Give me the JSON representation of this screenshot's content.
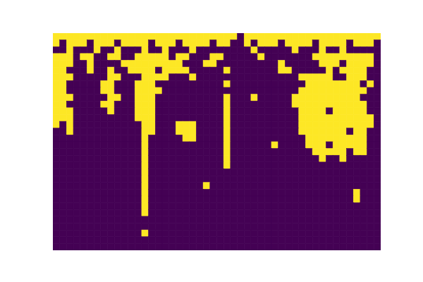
{
  "chart_data": {
    "type": "heatmap",
    "tick_labels": false,
    "cells": [
      [
        1,
        1,
        1,
        1,
        1,
        1,
        1,
        1,
        1,
        1,
        1,
        1,
        1,
        1,
        1,
        1,
        1,
        1,
        1,
        1,
        1,
        1,
        1,
        1,
        1,
        1,
        1,
        0,
        1,
        1,
        1,
        1,
        1,
        1,
        1,
        1,
        1,
        1,
        1,
        1,
        1,
        1,
        1,
        1,
        1,
        1,
        1,
        1
      ],
      [
        1,
        0,
        1,
        1,
        1,
        0,
        1,
        1,
        1,
        0,
        1,
        1,
        1,
        1,
        0,
        1,
        1,
        1,
        0,
        1,
        1,
        1,
        1,
        0,
        1,
        1,
        0,
        0,
        1,
        0,
        1,
        1,
        1,
        0,
        1,
        1,
        1,
        1,
        0,
        1,
        1,
        1,
        1,
        0,
        1,
        1,
        1,
        0
      ],
      [
        0,
        0,
        1,
        0,
        0,
        0,
        1,
        0,
        0,
        1,
        0,
        0,
        0,
        1,
        0,
        0,
        1,
        0,
        0,
        0,
        1,
        0,
        0,
        0,
        0,
        0,
        0,
        0,
        0,
        1,
        0,
        0,
        0,
        0,
        0,
        1,
        0,
        0,
        0,
        1,
        0,
        0,
        1,
        0,
        0,
        0,
        0,
        0
      ],
      [
        1,
        1,
        1,
        0,
        1,
        1,
        0,
        0,
        1,
        1,
        0,
        0,
        1,
        1,
        1,
        1,
        1,
        0,
        1,
        1,
        0,
        0,
        0,
        1,
        1,
        0,
        0,
        0,
        0,
        0,
        1,
        0,
        0,
        0,
        0,
        0,
        0,
        0,
        1,
        1,
        1,
        1,
        1,
        1,
        1,
        1,
        1,
        0
      ],
      [
        1,
        1,
        1,
        0,
        0,
        1,
        0,
        0,
        0,
        0,
        1,
        1,
        1,
        1,
        1,
        1,
        1,
        1,
        1,
        0,
        0,
        0,
        1,
        1,
        0,
        0,
        0,
        0,
        0,
        0,
        0,
        0,
        0,
        1,
        0,
        0,
        0,
        0,
        0,
        1,
        1,
        1,
        0,
        1,
        1,
        1,
        1,
        0
      ],
      [
        1,
        1,
        0,
        0,
        0,
        1,
        0,
        0,
        1,
        0,
        0,
        1,
        1,
        1,
        1,
        0,
        1,
        1,
        1,
        1,
        0,
        0,
        0,
        0,
        0,
        1,
        0,
        0,
        0,
        0,
        0,
        0,
        0,
        1,
        1,
        0,
        0,
        0,
        0,
        0,
        1,
        0,
        1,
        1,
        1,
        1,
        0,
        0
      ],
      [
        1,
        1,
        1,
        0,
        0,
        0,
        0,
        0,
        1,
        1,
        0,
        0,
        0,
        1,
        1,
        1,
        1,
        0,
        0,
        0,
        1,
        0,
        0,
        0,
        0,
        0,
        0,
        0,
        0,
        0,
        0,
        0,
        0,
        0,
        0,
        0,
        1,
        1,
        1,
        1,
        1,
        0,
        0,
        1,
        1,
        1,
        0,
        0
      ],
      [
        1,
        1,
        0,
        0,
        0,
        0,
        0,
        1,
        1,
        0,
        0,
        0,
        1,
        1,
        1,
        0,
        0,
        0,
        0,
        0,
        0,
        0,
        0,
        0,
        0,
        1,
        0,
        0,
        0,
        0,
        0,
        0,
        0,
        0,
        0,
        0,
        0,
        1,
        1,
        1,
        1,
        1,
        1,
        1,
        1,
        0,
        1,
        0
      ],
      [
        1,
        1,
        0,
        0,
        0,
        0,
        0,
        1,
        1,
        0,
        0,
        0,
        1,
        1,
        1,
        1,
        0,
        0,
        0,
        0,
        0,
        0,
        0,
        0,
        0,
        0,
        0,
        0,
        0,
        0,
        0,
        0,
        0,
        0,
        0,
        0,
        1,
        1,
        1,
        1,
        1,
        1,
        1,
        1,
        1,
        1,
        0,
        0
      ],
      [
        1,
        1,
        1,
        0,
        0,
        0,
        0,
        0,
        1,
        1,
        0,
        0,
        1,
        1,
        1,
        0,
        0,
        0,
        0,
        0,
        0,
        0,
        0,
        0,
        0,
        1,
        0,
        0,
        0,
        1,
        0,
        0,
        0,
        0,
        0,
        1,
        1,
        1,
        1,
        1,
        1,
        1,
        1,
        1,
        1,
        0,
        0,
        0
      ],
      [
        1,
        1,
        0,
        0,
        0,
        0,
        0,
        1,
        1,
        0,
        0,
        0,
        1,
        1,
        1,
        0,
        0,
        0,
        0,
        0,
        0,
        0,
        0,
        0,
        0,
        1,
        0,
        0,
        0,
        0,
        0,
        0,
        0,
        0,
        0,
        1,
        1,
        1,
        1,
        1,
        1,
        1,
        1,
        1,
        1,
        1,
        0,
        0
      ],
      [
        1,
        1,
        1,
        0,
        0,
        0,
        0,
        0,
        1,
        0,
        0,
        0,
        1,
        1,
        1,
        0,
        0,
        0,
        0,
        0,
        0,
        0,
        0,
        0,
        0,
        1,
        0,
        0,
        0,
        0,
        0,
        0,
        0,
        0,
        0,
        0,
        1,
        1,
        1,
        1,
        0,
        1,
        1,
        1,
        1,
        1,
        0,
        0
      ],
      [
        1,
        1,
        1,
        0,
        0,
        0,
        0,
        0,
        0,
        0,
        0,
        0,
        1,
        1,
        1,
        0,
        0,
        0,
        0,
        0,
        0,
        0,
        0,
        0,
        0,
        1,
        0,
        0,
        0,
        0,
        0,
        0,
        0,
        0,
        0,
        0,
        1,
        1,
        1,
        1,
        1,
        1,
        1,
        1,
        1,
        1,
        1,
        0
      ],
      [
        1,
        0,
        1,
        0,
        0,
        0,
        0,
        0,
        0,
        0,
        0,
        0,
        0,
        1,
        1,
        0,
        0,
        0,
        1,
        1,
        1,
        0,
        0,
        0,
        0,
        1,
        0,
        0,
        0,
        0,
        0,
        0,
        0,
        0,
        0,
        0,
        1,
        1,
        1,
        1,
        1,
        1,
        1,
        1,
        1,
        1,
        1,
        0
      ],
      [
        0,
        0,
        1,
        0,
        0,
        0,
        0,
        0,
        0,
        0,
        0,
        0,
        0,
        1,
        1,
        0,
        0,
        0,
        1,
        1,
        1,
        0,
        0,
        0,
        0,
        1,
        0,
        0,
        0,
        0,
        0,
        0,
        0,
        0,
        0,
        0,
        1,
        1,
        1,
        1,
        1,
        1,
        1,
        0,
        1,
        1,
        0,
        0
      ],
      [
        0,
        0,
        0,
        0,
        0,
        0,
        0,
        0,
        0,
        0,
        0,
        0,
        0,
        1,
        0,
        0,
        0,
        0,
        0,
        1,
        1,
        0,
        0,
        0,
        0,
        1,
        0,
        0,
        0,
        0,
        0,
        0,
        0,
        0,
        0,
        0,
        0,
        1,
        1,
        1,
        1,
        1,
        1,
        1,
        1,
        1,
        0,
        0
      ],
      [
        0,
        0,
        0,
        0,
        0,
        0,
        0,
        0,
        0,
        0,
        0,
        0,
        0,
        1,
        0,
        0,
        0,
        0,
        0,
        0,
        0,
        0,
        0,
        0,
        0,
        1,
        0,
        0,
        0,
        0,
        0,
        0,
        1,
        0,
        0,
        0,
        0,
        1,
        1,
        1,
        0,
        1,
        1,
        1,
        1,
        1,
        0,
        0
      ],
      [
        0,
        0,
        0,
        0,
        0,
        0,
        0,
        0,
        0,
        0,
        0,
        0,
        0,
        1,
        0,
        0,
        0,
        0,
        0,
        0,
        0,
        0,
        0,
        0,
        0,
        1,
        0,
        0,
        0,
        0,
        0,
        0,
        0,
        0,
        0,
        0,
        0,
        0,
        1,
        1,
        1,
        1,
        1,
        0,
        1,
        1,
        0,
        0
      ],
      [
        0,
        0,
        0,
        0,
        0,
        0,
        0,
        0,
        0,
        0,
        0,
        0,
        0,
        1,
        0,
        0,
        0,
        0,
        0,
        0,
        0,
        0,
        0,
        0,
        0,
        1,
        0,
        0,
        0,
        0,
        0,
        0,
        0,
        0,
        0,
        0,
        0,
        0,
        0,
        1,
        0,
        0,
        1,
        0,
        0,
        0,
        0,
        0
      ],
      [
        0,
        0,
        0,
        0,
        0,
        0,
        0,
        0,
        0,
        0,
        0,
        0,
        0,
        1,
        0,
        0,
        0,
        0,
        0,
        0,
        0,
        0,
        0,
        0,
        0,
        1,
        0,
        0,
        0,
        0,
        0,
        0,
        0,
        0,
        0,
        0,
        0,
        0,
        0,
        0,
        0,
        0,
        0,
        0,
        0,
        0,
        0,
        0
      ],
      [
        0,
        0,
        0,
        0,
        0,
        0,
        0,
        0,
        0,
        0,
        0,
        0,
        0,
        1,
        0,
        0,
        0,
        0,
        0,
        0,
        0,
        0,
        0,
        0,
        0,
        0,
        0,
        0,
        0,
        0,
        0,
        0,
        0,
        0,
        0,
        0,
        0,
        0,
        0,
        0,
        0,
        0,
        0,
        0,
        0,
        0,
        0,
        0
      ],
      [
        0,
        0,
        0,
        0,
        0,
        0,
        0,
        0,
        0,
        0,
        0,
        0,
        0,
        1,
        0,
        0,
        0,
        0,
        0,
        0,
        0,
        0,
        0,
        0,
        0,
        0,
        0,
        0,
        0,
        0,
        0,
        0,
        0,
        0,
        0,
        0,
        0,
        0,
        0,
        0,
        0,
        0,
        0,
        0,
        0,
        0,
        0,
        0
      ],
      [
        0,
        0,
        0,
        0,
        0,
        0,
        0,
        0,
        0,
        0,
        0,
        0,
        0,
        1,
        0,
        0,
        0,
        0,
        0,
        0,
        0,
        0,
        1,
        0,
        0,
        0,
        0,
        0,
        0,
        0,
        0,
        0,
        0,
        0,
        0,
        0,
        0,
        0,
        0,
        0,
        0,
        0,
        0,
        0,
        0,
        0,
        0,
        0
      ],
      [
        0,
        0,
        0,
        0,
        0,
        0,
        0,
        0,
        0,
        0,
        0,
        0,
        0,
        1,
        0,
        0,
        0,
        0,
        0,
        0,
        0,
        0,
        0,
        0,
        0,
        0,
        0,
        0,
        0,
        0,
        0,
        0,
        0,
        0,
        0,
        0,
        0,
        0,
        0,
        0,
        0,
        0,
        0,
        0,
        1,
        0,
        0,
        0
      ],
      [
        0,
        0,
        0,
        0,
        0,
        0,
        0,
        0,
        0,
        0,
        0,
        0,
        0,
        1,
        0,
        0,
        0,
        0,
        0,
        0,
        0,
        0,
        0,
        0,
        0,
        0,
        0,
        0,
        0,
        0,
        0,
        0,
        0,
        0,
        0,
        0,
        0,
        0,
        0,
        0,
        0,
        0,
        0,
        0,
        1,
        0,
        0,
        0
      ],
      [
        0,
        0,
        0,
        0,
        0,
        0,
        0,
        0,
        0,
        0,
        0,
        0,
        0,
        1,
        0,
        0,
        0,
        0,
        0,
        0,
        0,
        0,
        0,
        0,
        0,
        0,
        0,
        0,
        0,
        0,
        0,
        0,
        0,
        0,
        0,
        0,
        0,
        0,
        0,
        0,
        0,
        0,
        0,
        0,
        0,
        0,
        0,
        0
      ],
      [
        0,
        0,
        0,
        0,
        0,
        0,
        0,
        0,
        0,
        0,
        0,
        0,
        0,
        1,
        0,
        0,
        0,
        0,
        0,
        0,
        0,
        0,
        0,
        0,
        0,
        0,
        0,
        0,
        0,
        0,
        0,
        0,
        0,
        0,
        0,
        0,
        0,
        0,
        0,
        0,
        0,
        0,
        0,
        0,
        0,
        0,
        0,
        0
      ],
      [
        0,
        0,
        0,
        0,
        0,
        0,
        0,
        0,
        0,
        0,
        0,
        0,
        0,
        0,
        0,
        0,
        0,
        0,
        0,
        0,
        0,
        0,
        0,
        0,
        0,
        0,
        0,
        0,
        0,
        0,
        0,
        0,
        0,
        0,
        0,
        0,
        0,
        0,
        0,
        0,
        0,
        0,
        0,
        0,
        0,
        0,
        0,
        0
      ],
      [
        0,
        0,
        0,
        0,
        0,
        0,
        0,
        0,
        0,
        0,
        0,
        0,
        0,
        0,
        0,
        0,
        0,
        0,
        0,
        0,
        0,
        0,
        0,
        0,
        0,
        0,
        0,
        0,
        0,
        0,
        0,
        0,
        0,
        0,
        0,
        0,
        0,
        0,
        0,
        0,
        0,
        0,
        0,
        0,
        0,
        0,
        0,
        0
      ],
      [
        0,
        0,
        0,
        0,
        0,
        0,
        0,
        0,
        0,
        0,
        0,
        0,
        0,
        1,
        0,
        0,
        0,
        0,
        0,
        0,
        0,
        0,
        0,
        0,
        0,
        0,
        0,
        0,
        0,
        0,
        0,
        0,
        0,
        0,
        0,
        0,
        0,
        0,
        0,
        0,
        0,
        0,
        0,
        0,
        0,
        0,
        0,
        0
      ],
      [
        0,
        0,
        0,
        0,
        0,
        0,
        0,
        0,
        0,
        0,
        0,
        0,
        0,
        0,
        0,
        0,
        0,
        0,
        0,
        0,
        0,
        0,
        0,
        0,
        0,
        0,
        0,
        0,
        0,
        0,
        0,
        0,
        0,
        0,
        0,
        0,
        0,
        0,
        0,
        0,
        0,
        0,
        0,
        0,
        0,
        0,
        0,
        0
      ],
      [
        0,
        0,
        0,
        0,
        0,
        0,
        0,
        0,
        0,
        0,
        0,
        0,
        0,
        0,
        0,
        0,
        0,
        0,
        0,
        0,
        0,
        0,
        0,
        0,
        0,
        0,
        0,
        0,
        0,
        0,
        0,
        0,
        0,
        0,
        0,
        0,
        0,
        0,
        0,
        0,
        0,
        0,
        0,
        0,
        0,
        0,
        0,
        0
      ]
    ]
  }
}
